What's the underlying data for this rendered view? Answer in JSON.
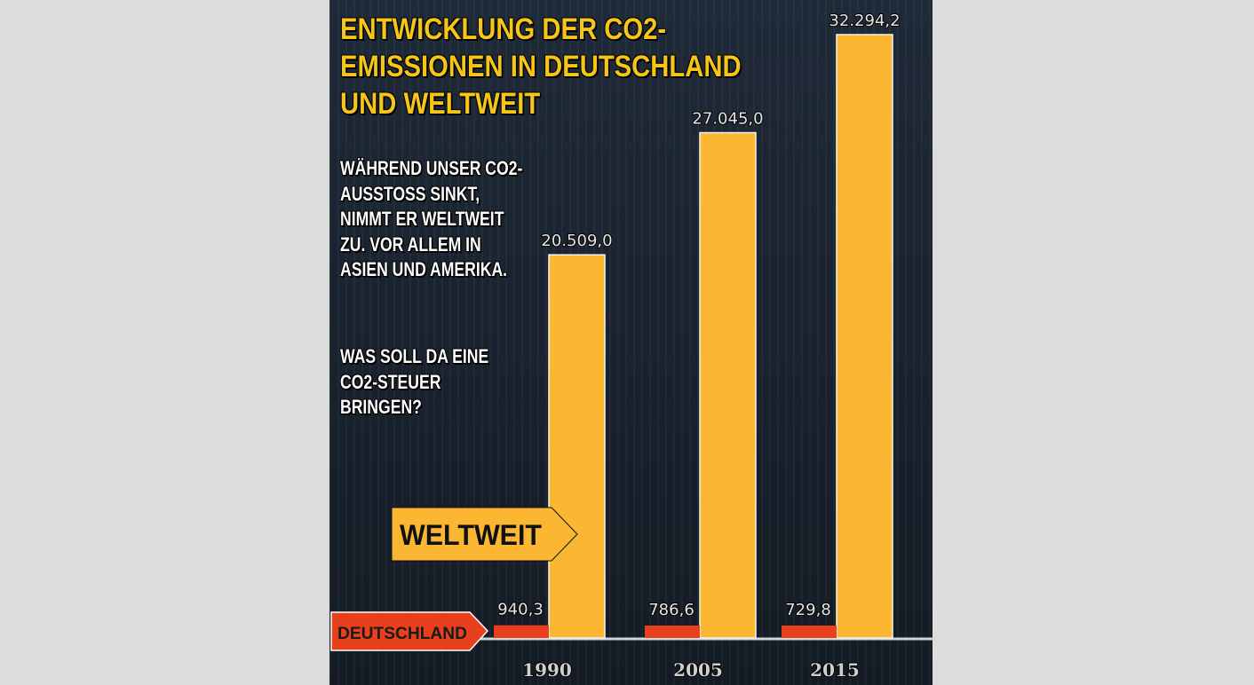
{
  "title": "ENTWICKLUNG DER CO2-\nEMISSIONEN IN DEUTSCHLAND\nUND WELTWEIT",
  "paragraphs": [
    "WÄHREND UNSER CO2-AUSSTOSS SINKT, NIMMT ER WELTWEIT ZU. VOR ALLEM IN ASIEN UND AMERIKA.",
    "WAS SOLL DA EINE CO2-STEUER BRINGEN?"
  ],
  "colors": {
    "weltweit": "#fbb732",
    "deutschland": "#e8401c",
    "title": "#f5c518",
    "background": "#1c2531"
  },
  "chart_data": {
    "type": "bar",
    "categories": [
      "1990",
      "2005",
      "2015"
    ],
    "series": [
      {
        "name": "DEUTSCHLAND",
        "values": [
          940.3,
          786.6,
          729.8
        ],
        "labels": [
          "940,3",
          "786,6",
          "729,8"
        ]
      },
      {
        "name": "WELTWEIT",
        "values": [
          20509.0,
          27045.0,
          32294.2
        ],
        "labels": [
          "20.509,0",
          "27.045,0",
          "32.294,2"
        ]
      }
    ],
    "legend": [
      "WELTWEIT",
      "DEUTSCHLAND"
    ],
    "grid": false
  }
}
